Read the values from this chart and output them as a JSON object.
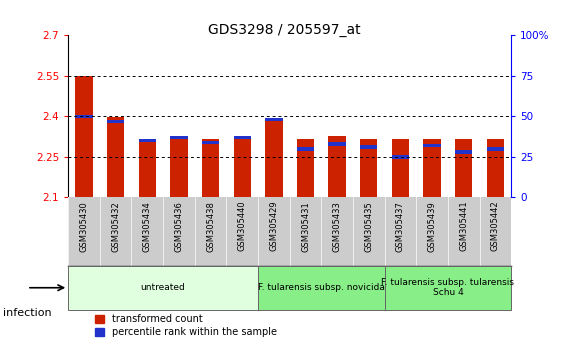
{
  "title": "GDS3298 / 205597_at",
  "samples": [
    "GSM305430",
    "GSM305432",
    "GSM305434",
    "GSM305436",
    "GSM305438",
    "GSM305440",
    "GSM305429",
    "GSM305431",
    "GSM305433",
    "GSM305435",
    "GSM305437",
    "GSM305439",
    "GSM305441",
    "GSM305442"
  ],
  "transformed_count": [
    2.548,
    2.398,
    2.318,
    2.325,
    2.318,
    2.328,
    2.388,
    2.318,
    2.328,
    2.318,
    2.318,
    2.318,
    2.318,
    2.318
  ],
  "percentile_rank": [
    50,
    47,
    35,
    37,
    34,
    37,
    48,
    30,
    33,
    31,
    25,
    32,
    28,
    30
  ],
  "ymin": 2.1,
  "ymax": 2.7,
  "yticks": [
    2.1,
    2.25,
    2.4,
    2.55,
    2.7
  ],
  "right_yticks": [
    0,
    25,
    50,
    75,
    100
  ],
  "bar_color": "#cc2200",
  "blue_color": "#2233cc",
  "group1_count": 6,
  "group1_label": "untreated",
  "group1_color": "#dfffdf",
  "group2_count": 4,
  "group2_label": "F. tularensis subsp. novicida",
  "group2_color": "#88ee88",
  "group3_count": 4,
  "group3_label": "F. tularensis subsp. tularensis\nSchu 4",
  "group3_color": "#88ee88",
  "legend_red": "transformed count",
  "legend_blue": "percentile rank within the sample",
  "infection_label": "infection",
  "bar_width": 0.55,
  "grid_dotted_color": "#333333",
  "xtick_bg": "#cccccc"
}
